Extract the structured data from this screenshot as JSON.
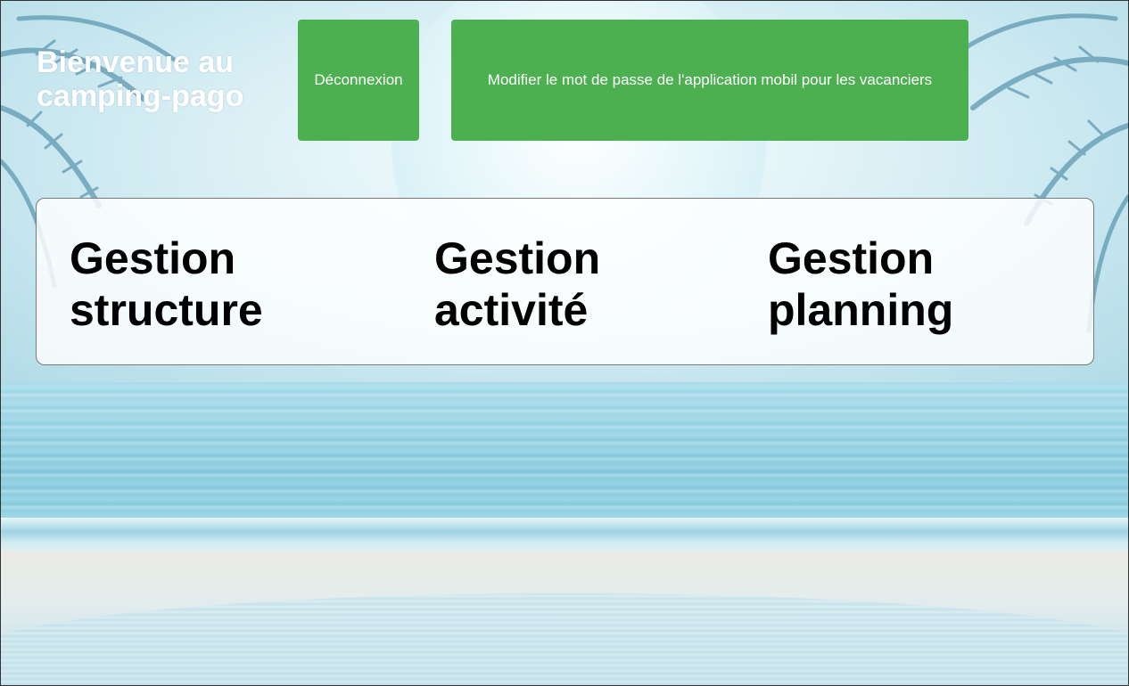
{
  "header": {
    "title": "Bienvenue au camping-pago",
    "logout_label": "Déconnexion",
    "change_password_label": "Modifier le mot de passe de l'application mobil pour les vacanciers"
  },
  "menu": {
    "items": [
      {
        "label": "Gestion structure"
      },
      {
        "label": "Gestion activité"
      },
      {
        "label": "Gestion planning"
      }
    ]
  },
  "colors": {
    "button": "#4caf50",
    "button_text": "#ffffff",
    "title_text": "#ffffff",
    "menu_text": "#000000"
  }
}
